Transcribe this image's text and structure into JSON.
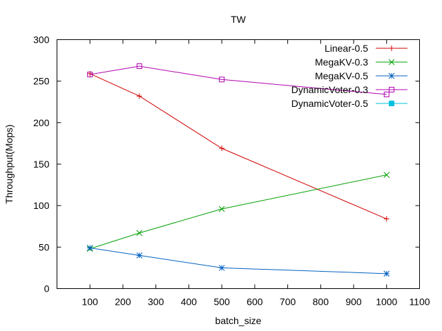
{
  "chart_data": {
    "type": "line",
    "title": "TW",
    "xlabel": "batch_size",
    "ylabel": "Throughput(Mops)",
    "xlim": [
      0,
      1100
    ],
    "ylim": [
      0,
      300
    ],
    "xticks": [
      100,
      200,
      300,
      400,
      500,
      600,
      700,
      800,
      900,
      1000,
      1100
    ],
    "yticks": [
      0,
      50,
      100,
      150,
      200,
      250,
      300
    ],
    "grid": false,
    "legend_position": "top-right",
    "series": [
      {
        "name": "Linear-0.5",
        "color": "#d00000",
        "marker": "plus",
        "x": [
          100,
          250,
          500,
          1000
        ],
        "y": [
          259,
          232,
          169,
          84
        ]
      },
      {
        "name": "MegaKV-0.3",
        "color": "#00a000",
        "marker": "cross",
        "x": [
          100,
          250,
          500,
          1000
        ],
        "y": [
          48,
          67,
          96,
          137
        ]
      },
      {
        "name": "MegaKV-0.5",
        "color": "#0060c0",
        "marker": "star",
        "x": [
          100,
          250,
          500,
          1000
        ],
        "y": [
          49,
          40,
          25,
          18
        ]
      },
      {
        "name": "DynamicVoter-0.3",
        "color": "#b000b0",
        "marker": "square",
        "x": [
          100,
          250,
          500,
          1000
        ],
        "y": [
          258,
          268,
          252,
          234
        ]
      },
      {
        "name": "DynamicVoter-0.5",
        "color": "#00c0e0",
        "marker": "filled-square",
        "x": [],
        "y": []
      }
    ]
  }
}
